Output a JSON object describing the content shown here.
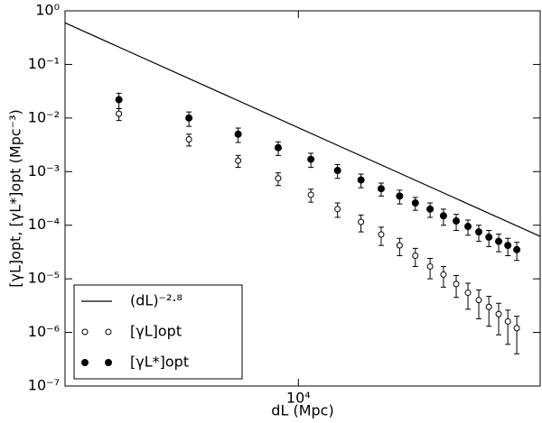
{
  "chart_data": {
    "type": "scatter",
    "xlabel": "dL (Mpc)",
    "ylabel": "[γL]opt, [γL*]opt (Mpc⁻³)",
    "log_x": true,
    "log_y": true,
    "xlim": [
      2000,
      53000
    ],
    "ylim": [
      1e-07,
      1
    ],
    "xticks": [
      {
        "value": 10000,
        "label": "10⁴"
      }
    ],
    "yticks": [
      {
        "value": 1e-07,
        "label": "10⁻⁷"
      },
      {
        "value": 1e-06,
        "label": "10⁻⁶"
      },
      {
        "value": 1e-05,
        "label": "10⁻⁵"
      },
      {
        "value": 0.0001,
        "label": "10⁻⁴"
      },
      {
        "value": 0.001,
        "label": "10⁻³"
      },
      {
        "value": 0.01,
        "label": "10⁻²"
      },
      {
        "value": 0.1,
        "label": "10⁻¹"
      },
      {
        "value": 1,
        "label": "10⁰"
      }
    ],
    "legend": "lower left",
    "series": [
      {
        "name": "(dL)⁻²·⁸",
        "kind": "line",
        "color": "#000000",
        "x": [
          2000,
          53000
        ],
        "values": [
          0.596,
          6.2e-05
        ]
      },
      {
        "name": "[γL]opt",
        "kind": "open",
        "color": "#000000",
        "x": [
          2900,
          4700,
          6600,
          8700,
          10900,
          13100,
          15400,
          17700,
          20100,
          22400,
          24800,
          27200,
          29700,
          32200,
          34700,
          37200,
          39800,
          42400,
          45100
        ],
        "values": [
          0.012,
          0.004,
          0.0016,
          0.00075,
          0.00037,
          0.0002,
          0.000115,
          6.7e-05,
          4.2e-05,
          2.7e-05,
          1.7e-05,
          1.2e-05,
          8e-06,
          5.5e-06,
          4e-06,
          3e-06,
          2.2e-06,
          1.6e-06,
          1.2e-06
        ],
        "errors": [
          0.003,
          0.001,
          0.0004,
          0.0002,
          0.0001,
          6e-05,
          4e-05,
          2.5e-05,
          1.5e-05,
          1e-05,
          7e-06,
          5e-06,
          3.5e-06,
          2.8e-06,
          2.2e-06,
          1.7e-06,
          1.3e-06,
          1e-06,
          8e-07
        ]
      },
      {
        "name": "[γL*]opt",
        "kind": "filled",
        "color": "#000000",
        "x": [
          2900,
          4700,
          6600,
          8700,
          10900,
          13100,
          15400,
          17700,
          20100,
          22400,
          24800,
          27200,
          29700,
          32200,
          34700,
          37200,
          39800,
          42400,
          45100
        ],
        "values": [
          0.022,
          0.01,
          0.005,
          0.0028,
          0.0017,
          0.00105,
          0.0007,
          0.00048,
          0.00035,
          0.00026,
          0.0002,
          0.00015,
          0.00012,
          9.5e-05,
          7.5e-05,
          6e-05,
          5e-05,
          4.2e-05,
          3.5e-05
        ],
        "errors": [
          0.007,
          0.003,
          0.0015,
          0.0008,
          0.0005,
          0.0003,
          0.0002,
          0.00013,
          0.0001,
          7e-05,
          6e-05,
          5e-05,
          4e-05,
          3e-05,
          2.5e-05,
          2e-05,
          1.8e-05,
          1.5e-05,
          1.3e-05
        ]
      }
    ]
  }
}
